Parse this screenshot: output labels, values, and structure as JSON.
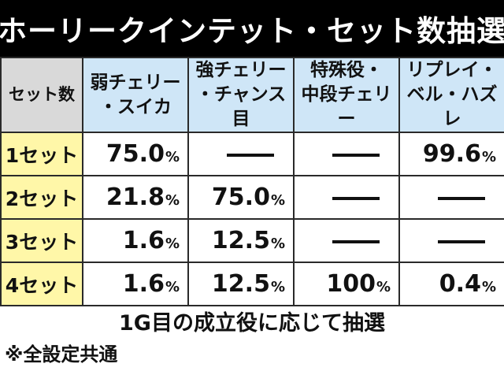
{
  "title": "ホーリークインテット・セット数抽選",
  "table": {
    "corner_label": "セット数",
    "columns": [
      [
        "弱チェリー",
        "・スイカ"
      ],
      [
        "強チェリー",
        "・チャンス目"
      ],
      [
        "特殊役・",
        "中段チェリー"
      ],
      [
        "リプレイ・",
        "ベル・ハズレ"
      ]
    ],
    "rows": [
      {
        "label": "1セット",
        "values": [
          "75.0",
          "—",
          "—",
          "99.6"
        ]
      },
      {
        "label": "2セット",
        "values": [
          "21.8",
          "75.0",
          "—",
          "—"
        ]
      },
      {
        "label": "3セット",
        "values": [
          "1.6",
          "12.5",
          "—",
          "—"
        ]
      },
      {
        "label": "4セット",
        "values": [
          "1.6",
          "12.5",
          "100",
          "0.4"
        ]
      }
    ],
    "percent_sign": "%"
  },
  "note_main": "1G目の成立役に応じて抽選",
  "note_sub": "※全設定共通",
  "colors": {
    "title_bg": "#000000",
    "header_bg": "#cfe6f7",
    "corner_bg": "#d9d9d9",
    "set_label_bg": "#fff7a8"
  }
}
